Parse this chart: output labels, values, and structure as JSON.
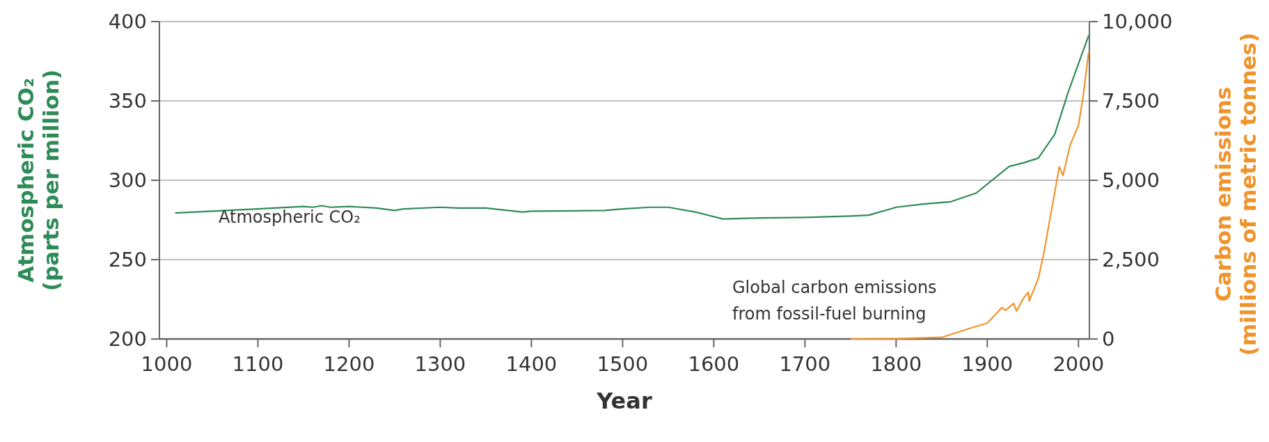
{
  "chart_data": {
    "type": "line",
    "xlabel": "Year",
    "ylabel": "Atmospheric CO₂ (parts per million)",
    "y2label": "Carbon emissions (millions of metric tonnes)",
    "xlim": [
      992,
      2012
    ],
    "xticks": [
      1000,
      1100,
      1200,
      1300,
      1400,
      1500,
      1600,
      1700,
      1800,
      1900,
      2000
    ],
    "ylim": [
      200,
      400
    ],
    "yticks": [
      200,
      250,
      300,
      350,
      400
    ],
    "y2lim": [
      0,
      10000
    ],
    "y2ticks": [
      0,
      {
        "value": 2500,
        "label": "2,500"
      },
      {
        "value": 5000,
        "label": "5,000"
      },
      {
        "value": 7500,
        "label": "7,500"
      },
      {
        "value": 10000,
        "label": "10,000"
      }
    ],
    "grid": "y",
    "marker": "none",
    "line_style": "solid",
    "series": [
      {
        "name": "Atmospheric CO₂",
        "color": "#2e8b57",
        "x": [
          1010,
          1050,
          1100,
          1150,
          1160,
          1170,
          1180,
          1200,
          1230,
          1250,
          1260,
          1300,
          1320,
          1350,
          1390,
          1400,
          1450,
          1480,
          1500,
          1530,
          1550,
          1580,
          1610,
          1650,
          1700,
          1750,
          1770,
          1800,
          1830,
          1860,
          1888,
          1924,
          1940,
          1956,
          1974,
          1989,
          2011
        ],
        "values": [
          279.4,
          280.5,
          282,
          283.5,
          283,
          284,
          283,
          283.5,
          282.5,
          281,
          282,
          283,
          282.5,
          282.5,
          280,
          280.5,
          280.8,
          281,
          282,
          283,
          283,
          280,
          275.6,
          276.3,
          276.6,
          277.5,
          278,
          283,
          285,
          286.5,
          292,
          308.7,
          311,
          314,
          329,
          356,
          391
        ]
      },
      {
        "name": "Global carbon emissions from fossil-fuel burning",
        "color": "#f0932b",
        "axis": "y2",
        "x": [
          1751,
          1800,
          1850,
          1880,
          1900,
          1916,
          1920,
          1929,
          1932,
          1940,
          1945,
          1946,
          1956,
          1962,
          1974,
          1979,
          1983,
          1991,
          2000,
          2005,
          2011
        ],
        "values": [
          0,
          10,
          50,
          330,
          500,
          990,
          900,
          1120,
          880,
          1300,
          1470,
          1200,
          1910,
          2700,
          4630,
          5420,
          5150,
          6120,
          6730,
          7610,
          9010
        ]
      }
    ]
  }
}
